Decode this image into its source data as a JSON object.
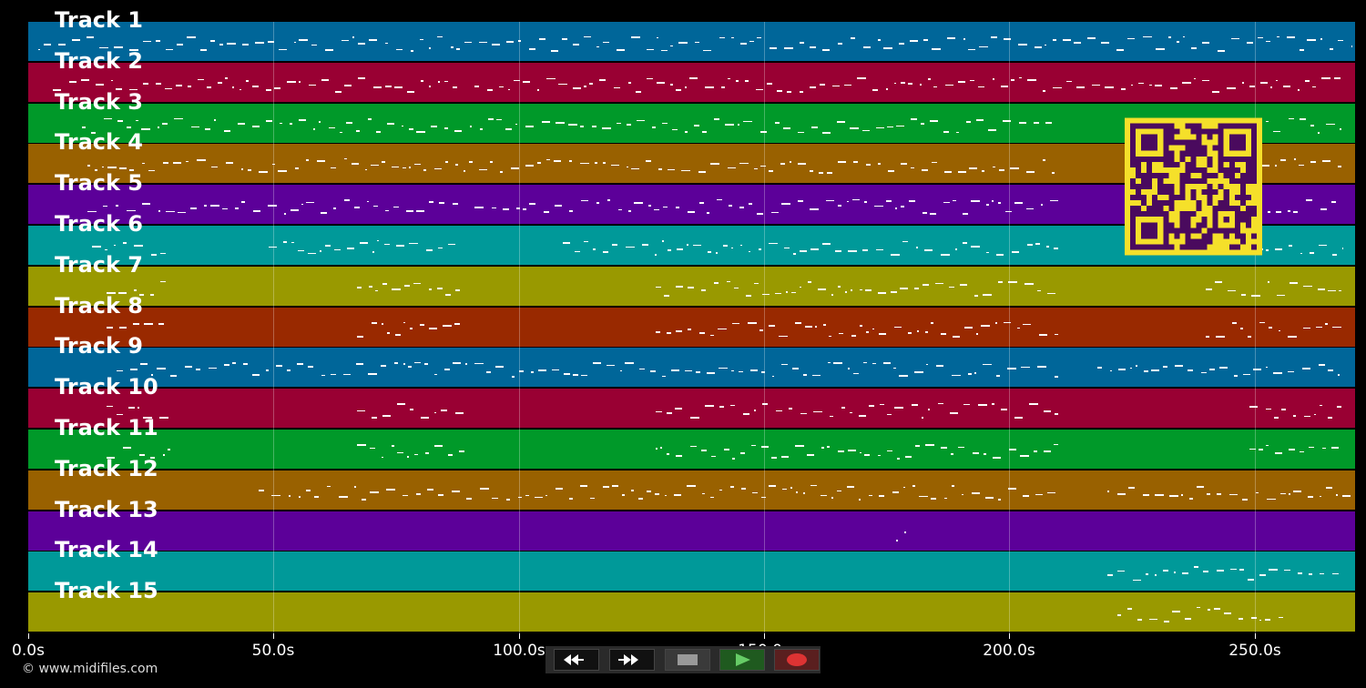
{
  "tracks": [
    {
      "label": "Track 1",
      "color": "#006699"
    },
    {
      "label": "Track 2",
      "color": "#990033"
    },
    {
      "label": "Track 3",
      "color": "#009929"
    },
    {
      "label": "Track 4",
      "color": "#996100"
    },
    {
      "label": "Track 5",
      "color": "#5c0099"
    },
    {
      "label": "Track 6",
      "color": "#009999"
    },
    {
      "label": "Track 7",
      "color": "#999900"
    },
    {
      "label": "Track 8",
      "color": "#992900"
    },
    {
      "label": "Track 9",
      "color": "#006699"
    },
    {
      "label": "Track 10",
      "color": "#990033"
    },
    {
      "label": "Track 11",
      "color": "#009929"
    },
    {
      "label": "Track 12",
      "color": "#996100"
    },
    {
      "label": "Track 13",
      "color": "#5c0099"
    },
    {
      "label": "Track 14",
      "color": "#009999"
    },
    {
      "label": "Track 15",
      "color": "#999900"
    }
  ],
  "timeline": {
    "ticks": [
      {
        "value": 0,
        "label": "0.0s"
      },
      {
        "value": 50,
        "label": "50.0s"
      },
      {
        "value": 100,
        "label": "100.0s"
      },
      {
        "value": 150,
        "label": "150.0s"
      },
      {
        "value": 200,
        "label": "200.0s"
      },
      {
        "value": 250,
        "label": "250.0s"
      }
    ],
    "max_seconds": 270.5
  },
  "activity": [
    [
      [
        2,
        88
      ],
      [
        89,
        270
      ]
    ],
    [
      [
        5,
        88
      ],
      [
        91,
        268
      ]
    ],
    [
      [
        11,
        210
      ],
      [
        250,
        268
      ]
    ],
    [
      [
        12,
        210
      ],
      [
        243,
        268
      ]
    ],
    [
      [
        12,
        88
      ],
      [
        91,
        210
      ],
      [
        250,
        268
      ]
    ],
    [
      [
        13,
        28
      ],
      [
        49,
        88
      ],
      [
        109,
        210
      ],
      [
        250,
        268
      ]
    ],
    [
      [
        16,
        28
      ],
      [
        67,
        88
      ],
      [
        128,
        210
      ],
      [
        240,
        268
      ]
    ],
    [
      [
        16,
        28
      ],
      [
        67,
        88
      ],
      [
        128,
        210
      ],
      [
        240,
        268
      ]
    ],
    [
      [
        18,
        210
      ],
      [
        218,
        268
      ]
    ],
    [
      [
        16,
        29
      ],
      [
        67,
        89
      ],
      [
        128,
        210
      ],
      [
        249,
        268
      ]
    ],
    [
      [
        16,
        29
      ],
      [
        67,
        89
      ],
      [
        128,
        210
      ],
      [
        249,
        268
      ]
    ],
    [
      [
        47,
        210
      ],
      [
        220,
        270
      ]
    ],
    [
      [
        177,
        179
      ]
    ],
    [
      [
        220,
        268
      ]
    ],
    [
      [
        222,
        256
      ]
    ]
  ],
  "copyright": "© www.midifiles.com",
  "transport": {
    "rewind_icon": "rewind-icon",
    "forward_icon": "fast-forward-icon",
    "stop_icon": "stop-icon",
    "play_icon": "play-icon",
    "record_icon": "record-icon",
    "play_color": "#66cc66",
    "record_color": "#dd3333"
  },
  "qr_colors": {
    "fg": "#4a0a5e",
    "bg": "#f5e02a"
  }
}
